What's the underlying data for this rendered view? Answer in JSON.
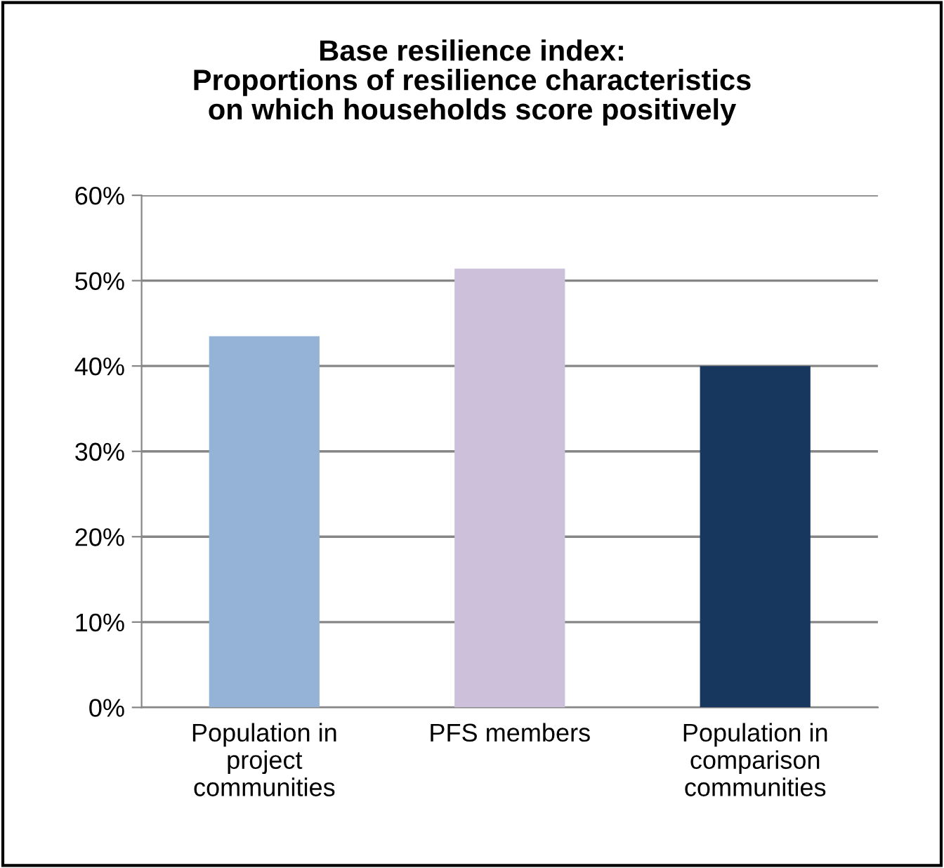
{
  "chart_data": {
    "type": "bar",
    "title": "Base resilience index:\nProportions of resilience characteristics\non which households score positively",
    "categories": [
      "Population in\nproject\ncommunities",
      "PFS members",
      "Population in\ncomparison\ncommunities"
    ],
    "values": [
      43.5,
      51.4,
      40
    ],
    "colors": [
      "#95b3d7",
      "#ccc0da",
      "#17375e"
    ],
    "ylim": [
      0,
      60
    ],
    "yticks": [
      {
        "value": 0,
        "label": "0%"
      },
      {
        "value": 10,
        "label": "10%"
      },
      {
        "value": 20,
        "label": "20%"
      },
      {
        "value": 30,
        "label": "30%"
      },
      {
        "value": 40,
        "label": "40%"
      },
      {
        "value": 50,
        "label": "50%"
      },
      {
        "value": 60,
        "label": "60%"
      }
    ],
    "grid": "y",
    "legend": false
  }
}
